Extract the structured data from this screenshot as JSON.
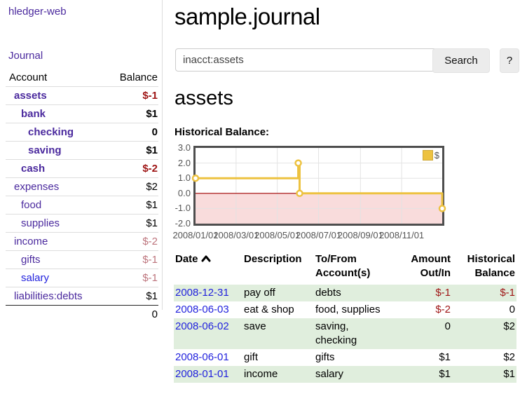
{
  "app": {
    "brand": "hledger-web"
  },
  "sidebar": {
    "nav_journal": "Journal",
    "accounts_header": {
      "account": "Account",
      "balance": "Balance"
    },
    "accounts": [
      {
        "name": "assets",
        "balance": "$-1",
        "depth": 1,
        "bold": true,
        "balance_class": "neg"
      },
      {
        "name": "bank",
        "balance": "$1",
        "depth": 2,
        "bold": true,
        "balance_class": ""
      },
      {
        "name": "checking",
        "balance": "0",
        "depth": 3,
        "bold": true,
        "balance_class": ""
      },
      {
        "name": "saving",
        "balance": "$1",
        "depth": 3,
        "bold": true,
        "balance_class": ""
      },
      {
        "name": "cash",
        "balance": "$-2",
        "depth": 2,
        "bold": true,
        "balance_class": "neg"
      },
      {
        "name": "expenses",
        "balance": "$2",
        "depth": 1,
        "bold": false,
        "balance_class": ""
      },
      {
        "name": "food",
        "balance": "$1",
        "depth": 2,
        "bold": false,
        "balance_class": ""
      },
      {
        "name": "supplies",
        "balance": "$1",
        "depth": 2,
        "bold": false,
        "balance_class": ""
      },
      {
        "name": "income",
        "balance": "$-2",
        "depth": 1,
        "bold": false,
        "balance_class": "negweak"
      },
      {
        "name": "gifts",
        "balance": "$-1",
        "depth": 2,
        "bold": false,
        "balance_class": "negweak"
      },
      {
        "name": "salary",
        "balance": "$-1",
        "depth": 2,
        "bold": false,
        "balance_class": "negweak",
        "link_class": "blue"
      },
      {
        "name": "liabilities:debts",
        "balance": "$1",
        "depth": 1,
        "bold": false,
        "balance_class": ""
      }
    ],
    "total": "0"
  },
  "main": {
    "title": "sample.journal",
    "search": {
      "value": "inacct:assets",
      "clear_icon": "×",
      "button": "Search",
      "help_button": "?"
    },
    "section_title": "assets",
    "chart_label": "Historical Balance:"
  },
  "chart_data": {
    "type": "line",
    "style": "step",
    "title": "Historical Balance:",
    "series": [
      {
        "name": "$",
        "color": "#edc240",
        "points": [
          [
            "2008-01-01",
            1
          ],
          [
            "2008-06-01",
            2
          ],
          [
            "2008-06-03",
            0
          ],
          [
            "2008-12-31",
            -1
          ]
        ]
      }
    ],
    "x_ticks": [
      "2008/01/01",
      "2008/03/01",
      "2008/05/01",
      "2008/07/01",
      "2008/09/01",
      "2008/11/01"
    ],
    "y_ticks": [
      "3.0",
      "2.0",
      "1.0",
      "0.0",
      "-1.0",
      "-2.0"
    ],
    "ylim": [
      -2,
      3
    ],
    "xlim": [
      "2008-01-01",
      "2008-12-31"
    ],
    "legend_position": "top-right",
    "grid": true,
    "colors": {
      "negative_region": "#f9dcdc",
      "zero_line": "#a00000",
      "gridline": "#e3e3e3",
      "border": "#4e4e4e"
    }
  },
  "register": {
    "headers": {
      "date": "Date",
      "description": "Description",
      "accounts": "To/From Account(s)",
      "amount": "Amount Out/In",
      "balance": "Historical Balance"
    },
    "rows": [
      {
        "date": "2008-12-31",
        "description": "pay off",
        "accounts": "debts",
        "amount": "$-1",
        "balance": "$-1",
        "amount_neg": true,
        "balance_neg": true,
        "shade": true
      },
      {
        "date": "2008-06-03",
        "description": "eat & shop",
        "accounts": "food, supplies",
        "amount": "$-2",
        "balance": "0",
        "amount_neg": true,
        "balance_neg": false,
        "shade": false
      },
      {
        "date": "2008-06-02",
        "description": "save",
        "accounts": "saving,\nchecking",
        "amount": "0",
        "balance": "$2",
        "amount_neg": false,
        "balance_neg": false,
        "shade": true
      },
      {
        "date": "2008-06-01",
        "description": "gift",
        "accounts": "gifts",
        "amount": "$1",
        "balance": "$2",
        "amount_neg": false,
        "balance_neg": false,
        "shade": false
      },
      {
        "date": "2008-01-01",
        "description": "income",
        "accounts": "salary",
        "amount": "$1",
        "balance": "$1",
        "amount_neg": false,
        "balance_neg": false,
        "shade": true
      }
    ]
  }
}
